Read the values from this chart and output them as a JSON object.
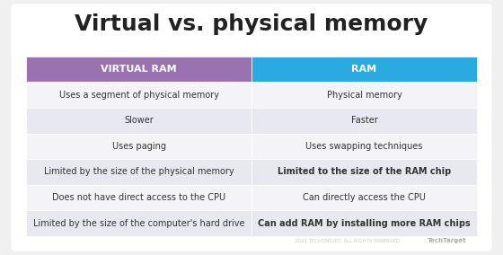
{
  "title": "Virtual vs. physical memory",
  "title_fontsize": 18,
  "title_fontweight": "bold",
  "col1_header": "VIRTUAL RAM",
  "col2_header": "RAM",
  "col1_header_color": "#9b72b0",
  "col2_header_color": "#29abe2",
  "header_text_color": "#ffffff",
  "header_fontsize": 8,
  "row_odd_color": "#e8e8f0",
  "row_even_color": "#f4f4f8",
  "row_text_color": "#333333",
  "row_fontsize": 7,
  "background_color": "#f0f0f0",
  "table_background": "#ffffff",
  "rows": [
    [
      "Uses a segment of physical memory",
      "Physical memory"
    ],
    [
      "Slower",
      "Faster"
    ],
    [
      "Uses paging",
      "Uses swapping techniques"
    ],
    [
      "Limited by the size of the physical memory",
      "Limited to the size of the RAM chip"
    ],
    [
      "Does not have direct access to the CPU",
      "Can directly access the CPU"
    ],
    [
      "Limited by the size of the computer's hard drive",
      "Can add RAM by installing more RAM chips"
    ]
  ],
  "bold_words_col2": {
    "3": [
      "RAM"
    ],
    "5": [
      "RAM",
      "RAM"
    ]
  },
  "watermark": "TechTarget",
  "watermark_prefix": "2021 TECHTARGET. ALL RIGHTS RESERVED.",
  "fig_width": 5.6,
  "fig_height": 2.84
}
